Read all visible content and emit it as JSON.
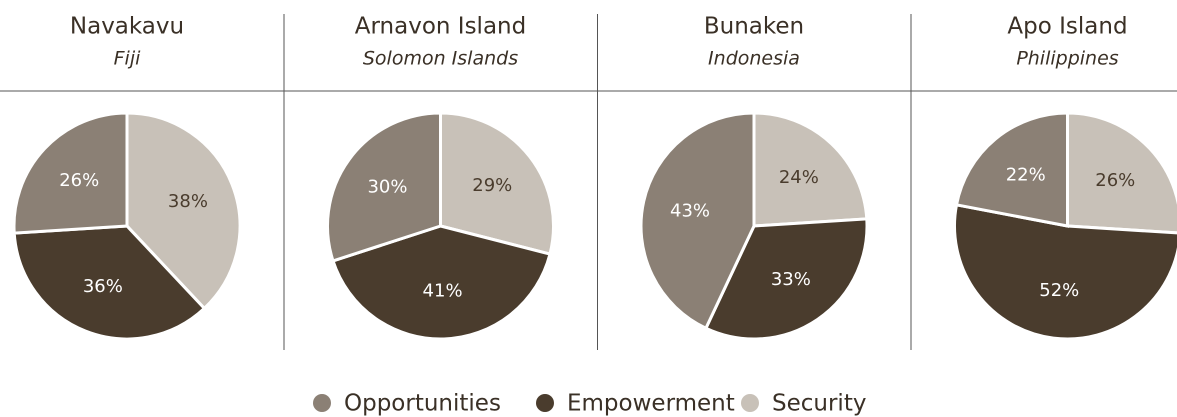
{
  "chart_data": [
    {
      "type": "pie",
      "title": "Navakavu",
      "subtitle": "Fiji",
      "values": [
        26,
        36,
        38
      ],
      "value_labels": [
        "26%",
        "36%",
        "38%"
      ]
    },
    {
      "type": "pie",
      "title": "Arnavon Island",
      "subtitle": "Solomon Islands",
      "values": [
        30,
        41,
        29
      ],
      "value_labels": [
        "30%",
        "41%",
        "29%"
      ]
    },
    {
      "type": "pie",
      "title": "Bunaken",
      "subtitle": "Indonesia",
      "values": [
        43,
        33,
        24
      ],
      "value_labels": [
        "43%",
        "33%",
        "24%"
      ]
    },
    {
      "type": "pie",
      "title": "Apo Island",
      "subtitle": "Philippines",
      "values": [
        22,
        52,
        26
      ],
      "value_labels": [
        "22%",
        "52%",
        "26%"
      ]
    }
  ],
  "legend": {
    "categories": [
      "Opportunities",
      "Empowerment",
      "Security"
    ],
    "colors": [
      "#8b8075",
      "#4a3c2d",
      "#c8c1b8"
    ],
    "text_colors": [
      "#ffffff",
      "#ffffff",
      "#4a3c2d"
    ]
  }
}
